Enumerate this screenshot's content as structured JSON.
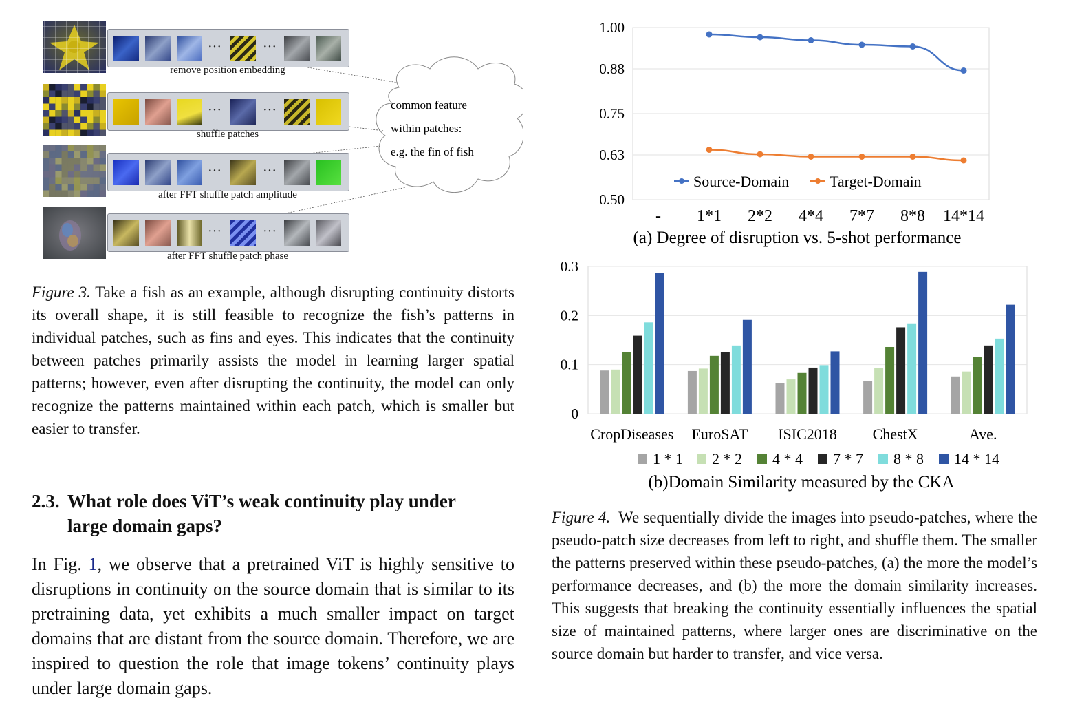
{
  "figure3": {
    "rows": [
      {
        "caption": "remove position embedding"
      },
      {
        "caption": "shuffle patches"
      },
      {
        "caption": "after FFT shuffle patch amplitude"
      },
      {
        "caption": "after FFT shuffle patch phase"
      }
    ],
    "ellipsis": "···",
    "cloud_lines": [
      "common feature",
      "within patches:",
      "e.g. the fin of fish"
    ],
    "caption_label": "Figure 3.",
    "caption_text": "Take a fish as an example, although disrupting continuity distorts its overall shape, it is still feasible to recognize the fish’s patterns in individual patches, such as fins and eyes. This indicates that the continuity between patches primarily assists the model in learning larger spatial patterns; however, even after disrupting the continuity, the model can only recognize the patterns maintained within each patch, which is smaller but easier to transfer."
  },
  "section": {
    "number": "2.3.",
    "title_line1": "What role does ViT’s weak continuity play under",
    "title_line2": "large domain gaps?",
    "body_before_ref": "In Fig. ",
    "body_ref": "1",
    "body_after_ref": ", we observe that a pretrained ViT is highly sensitive to disruptions in continuity on the source domain that is similar to its pretraining data, yet exhibits a much smaller impact on target domains that are distant from the source domain. Therefore, we are inspired to question the role that image tokens’ continuity plays under large domain gaps."
  },
  "figure4": {
    "caption_label": "Figure 4.",
    "caption_text": "We sequentially divide the images into pseudo-patches, where the pseudo-patch size decreases from left to right, and shuffle them. The smaller the patterns preserved within these pseudo-patches, (a) the more the model’s performance decreases, and (b) the more the domain similarity increases. This suggests that breaking the continuity essentially influences the spatial size of maintained patterns, where larger ones are discriminative on the source domain but harder to transfer, and vice versa."
  },
  "chart_data": [
    {
      "type": "line",
      "title": "(a) Degree of disruption vs. 5-shot performance",
      "categories": [
        "-",
        "1*1",
        "2*2",
        "4*4",
        "7*7",
        "8*8",
        "14*14"
      ],
      "ylim": [
        0.5,
        1.0
      ],
      "yticks": [
        "0.50",
        "0.63",
        "0.75",
        "0.88",
        "1.00"
      ],
      "grid": true,
      "legend": "bottom-inside",
      "series": [
        {
          "name": "Source-Domain",
          "color": "#4472c4",
          "values": [
            null,
            0.98,
            0.972,
            0.963,
            0.95,
            0.945,
            0.875
          ]
        },
        {
          "name": "Target-Domain",
          "color": "#ed7d31",
          "values": [
            null,
            0.645,
            0.632,
            0.625,
            0.625,
            0.625,
            0.614
          ]
        }
      ]
    },
    {
      "type": "bar",
      "title": "(b)Domain Similarity measured by the CKA",
      "categories": [
        "CropDiseases",
        "EuroSAT",
        "ISIC2018",
        "ChestX",
        "Ave."
      ],
      "ylim": [
        0,
        0.3
      ],
      "yticks": [
        "0",
        "0.1",
        "0.2",
        "0.3"
      ],
      "grid": true,
      "legend": "bottom",
      "series": [
        {
          "name": "1 * 1",
          "color": "#a5a5a5",
          "values": [
            0.088,
            0.087,
            0.062,
            0.067,
            0.076
          ]
        },
        {
          "name": "2 * 2",
          "color": "#c6e0b4",
          "values": [
            0.09,
            0.092,
            0.07,
            0.093,
            0.086
          ]
        },
        {
          "name": "4 * 4",
          "color": "#548235",
          "values": [
            0.125,
            0.118,
            0.083,
            0.136,
            0.115
          ]
        },
        {
          "name": "7 * 7",
          "color": "#262626",
          "values": [
            0.159,
            0.125,
            0.094,
            0.176,
            0.139
          ]
        },
        {
          "name": "8 * 8",
          "color": "#7fdcdc",
          "values": [
            0.186,
            0.139,
            0.099,
            0.184,
            0.153
          ]
        },
        {
          "name": "14 * 14",
          "color": "#2f55a4",
          "values": [
            0.286,
            0.191,
            0.127,
            0.289,
            0.222
          ]
        }
      ]
    }
  ]
}
